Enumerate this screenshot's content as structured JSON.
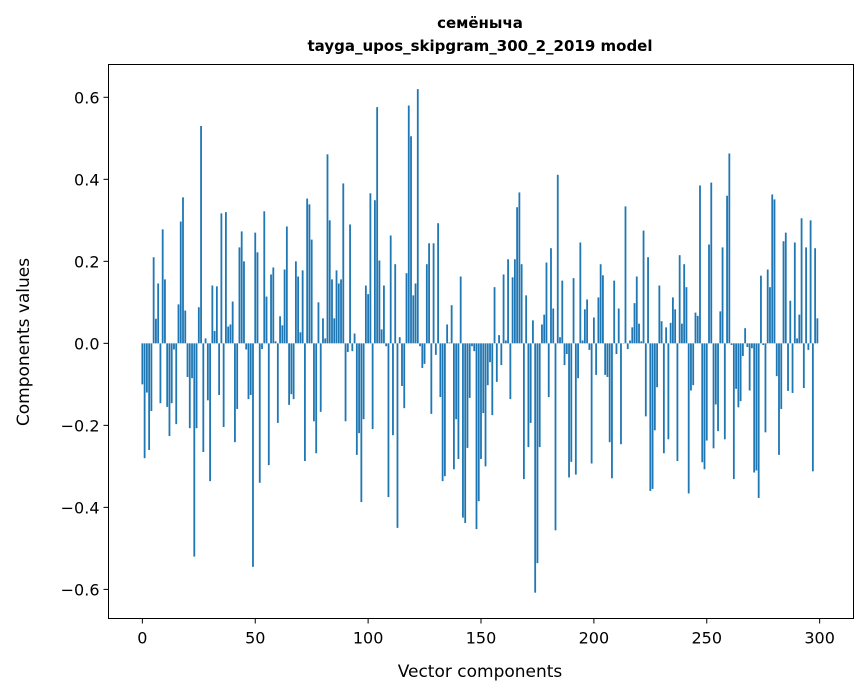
{
  "chart_data": {
    "type": "bar",
    "title": "семёныча",
    "subtitle": "tayga_upos_skipgram_300_2_2019 model",
    "xlabel": "Vector components",
    "ylabel": "Components values",
    "xlim": [
      -15,
      315
    ],
    "ylim": [
      -0.671,
      0.68
    ],
    "grid": false,
    "bar_color": "#1f77b4",
    "x_ticks": [
      0,
      50,
      100,
      150,
      200,
      250,
      300
    ],
    "x_tick_labels": [
      "0",
      "50",
      "100",
      "150",
      "200",
      "250",
      "300"
    ],
    "y_ticks": [
      -0.6,
      -0.4,
      -0.2,
      0.0,
      0.2,
      0.4,
      0.6
    ],
    "y_tick_labels": [
      "−0.6",
      "−0.4",
      "−0.2",
      "0.0",
      "0.2",
      "0.4",
      "0.6"
    ],
    "values": [
      -0.1,
      -0.28,
      -0.12,
      -0.26,
      -0.165,
      0.21,
      0.06,
      0.146,
      -0.146,
      0.278,
      0.156,
      -0.155,
      -0.226,
      -0.146,
      -0.015,
      -0.197,
      0.095,
      0.297,
      0.356,
      0.08,
      -0.082,
      -0.207,
      -0.085,
      -0.52,
      -0.207,
      0.088,
      0.53,
      -0.265,
      0.012,
      -0.139,
      -0.336,
      0.141,
      0.03,
      0.139,
      -0.126,
      0.317,
      -0.204,
      0.32,
      0.041,
      0.046,
      0.102,
      -0.241,
      -0.16,
      0.234,
      0.273,
      0.2,
      -0.015,
      -0.136,
      -0.126,
      -0.545,
      0.27,
      0.222,
      -0.34,
      -0.014,
      0.322,
      0.114,
      -0.297,
      0.168,
      0.185,
      0.005,
      -0.194,
      0.066,
      0.044,
      0.18,
      0.285,
      -0.15,
      -0.124,
      -0.136,
      0.2,
      0.163,
      0.027,
      0.178,
      -0.287,
      0.353,
      0.339,
      0.253,
      -0.19,
      -0.268,
      0.1,
      -0.167,
      0.061,
      0.012,
      0.461,
      0.3,
      0.156,
      0.061,
      0.178,
      0.146,
      0.156,
      0.39,
      -0.19,
      -0.021,
      0.29,
      -0.019,
      0.024,
      -0.272,
      -0.219,
      -0.387,
      -0.185,
      0.141,
      0.12,
      0.366,
      -0.209,
      0.349,
      0.576,
      0.202,
      0.034,
      0.141,
      -0.007,
      -0.375,
      0.263,
      -0.224,
      0.193,
      -0.45,
      0.015,
      -0.104,
      -0.158,
      0.171,
      0.58,
      0.505,
      0.117,
      0.146,
      0.62,
      -0.007,
      -0.06,
      -0.05,
      0.193,
      0.244,
      -0.172,
      0.244,
      -0.028,
      0.293,
      -0.131,
      -0.336,
      -0.324,
      0.046,
      0.002,
      0.093,
      -0.307,
      -0.185,
      -0.282,
      0.163,
      -0.425,
      -0.438,
      -0.255,
      -0.133,
      -0.007,
      -0.019,
      -0.453,
      -0.385,
      -0.282,
      -0.17,
      -0.3,
      -0.102,
      -0.046,
      -0.175,
      0.137,
      -0.094,
      0.02,
      -0.053,
      0.168,
      0.007,
      0.205,
      -0.136,
      0.161,
      0.205,
      0.332,
      0.368,
      0.193,
      -0.331,
      0.117,
      -0.253,
      -0.194,
      0.056,
      -0.608,
      -0.536,
      -0.253,
      0.046,
      0.07,
      0.197,
      -0.131,
      0.232,
      0.085,
      -0.456,
      0.411,
      0.015,
      0.153,
      -0.053,
      -0.026,
      -0.327,
      -0.289,
      0.159,
      -0.32,
      -0.085,
      0.246,
      0.007,
      0.083,
      0.107,
      -0.016,
      -0.293,
      0.063,
      -0.077,
      0.112,
      0.193,
      0.166,
      -0.077,
      -0.082,
      -0.241,
      -0.329,
      0.153,
      -0.026,
      0.085,
      -0.246,
      0.0,
      0.334,
      -0.014,
      0.007,
      0.039,
      0.098,
      0.163,
      0.048,
      0.005,
      0.275,
      -0.178,
      0.21,
      -0.36,
      -0.355,
      -0.212,
      -0.107,
      0.141,
      0.054,
      -0.268,
      0.039,
      -0.234,
      0.05,
      0.112,
      0.083,
      -0.287,
      0.215,
      0.048,
      0.193,
      0.137,
      -0.366,
      -0.115,
      -0.102,
      0.075,
      0.067,
      0.385,
      -0.29,
      -0.307,
      -0.237,
      0.241,
      0.392,
      -0.256,
      -0.149,
      -0.214,
      0.078,
      0.234,
      -0.234,
      0.36,
      0.463,
      -0.004,
      -0.331,
      -0.111,
      -0.156,
      -0.141,
      -0.031,
      0.037,
      -0.009,
      -0.115,
      -0.012,
      -0.315,
      -0.31,
      -0.377,
      0.165,
      -0.004,
      -0.217,
      0.18,
      0.137,
      0.363,
      0.351,
      -0.08,
      -0.272,
      -0.16,
      0.249,
      0.27,
      -0.116,
      0.104,
      -0.121,
      0.246,
      0.012,
      0.07,
      0.305,
      -0.109,
      0.234,
      -0.016,
      0.3,
      -0.312,
      0.232,
      0.061
    ]
  }
}
